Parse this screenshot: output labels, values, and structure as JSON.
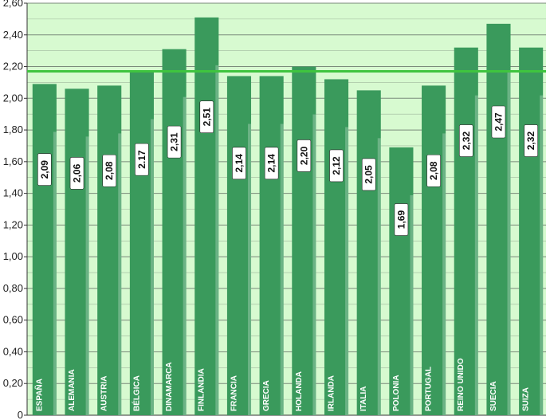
{
  "chart_data": {
    "type": "bar",
    "categories": [
      "ESPAÑA",
      "ALEMANIA",
      "AUSTRIA",
      "BÉLGICA",
      "DINAMARCA",
      "FINLANDIA",
      "FRANCIA",
      "GRECIA",
      "HOLANDA",
      "IRLANDA",
      "ITALIA",
      "POLONIA",
      "PORTUGAL",
      "REINO UNIDO",
      "SUECIA",
      "SUIZA"
    ],
    "values": [
      2.09,
      2.06,
      2.08,
      2.17,
      2.31,
      2.51,
      2.14,
      2.14,
      2.2,
      2.12,
      2.05,
      1.69,
      2.08,
      2.32,
      2.47,
      2.32
    ],
    "value_labels": [
      "2,09",
      "2,06",
      "2,08",
      "2.17",
      "2,31",
      "2,51",
      "2,14",
      "2,14",
      "2,20",
      "2,12",
      "2,05",
      "1,69",
      "2,08",
      "2,32",
      "2,47",
      "2,32"
    ],
    "y_ticks": [
      "0",
      "0,20",
      "0,40",
      "0,60",
      "0,80",
      "1,00",
      "1,20",
      "1,40",
      "1,60",
      "1,80",
      "2,00",
      "2,20",
      "2,40",
      "2,60"
    ],
    "ylim": [
      0,
      2.6
    ],
    "reference_line": 2.17,
    "grid": true,
    "colors": {
      "bar": "#3a9a5c",
      "plot_bg": "#d7fad0",
      "reference_line": "#3fc43f",
      "grid": "#7a8a7a"
    }
  }
}
